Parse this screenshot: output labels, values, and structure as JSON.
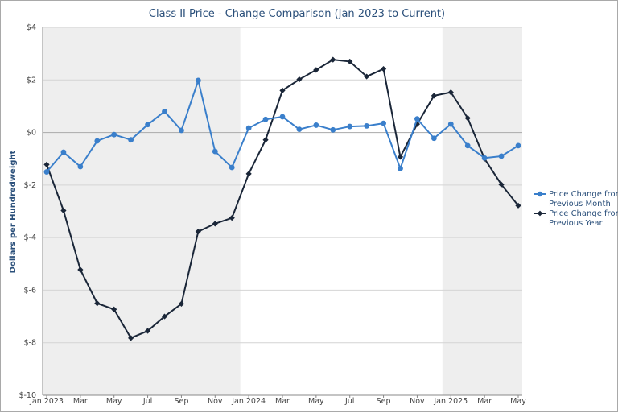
{
  "chart_data": {
    "type": "line",
    "title": "Class II Price - Change Comparison (Jan 2023 to Current)",
    "xlabel": "",
    "ylabel": "Dollars per Hundredweight",
    "ylim": [
      -10,
      4
    ],
    "yticks": [
      4,
      2,
      0,
      -2,
      -4,
      -6,
      -8,
      -10
    ],
    "ytick_labels": [
      "$4",
      "$2",
      "$0",
      "$-2",
      "$-4",
      "$-6",
      "$-8",
      "$-10"
    ],
    "x_labels": [
      {
        "i": 0,
        "label": "Jan 2023"
      },
      {
        "i": 2,
        "label": "Mar"
      },
      {
        "i": 4,
        "label": "May"
      },
      {
        "i": 6,
        "label": "Jul"
      },
      {
        "i": 8,
        "label": "Sep"
      },
      {
        "i": 10,
        "label": "Nov"
      },
      {
        "i": 12,
        "label": "Jan 2024"
      },
      {
        "i": 14,
        "label": "Mar"
      },
      {
        "i": 16,
        "label": "May"
      },
      {
        "i": 18,
        "label": "Jul"
      },
      {
        "i": 20,
        "label": "Sep"
      },
      {
        "i": 22,
        "label": "Nov"
      },
      {
        "i": 24,
        "label": "Jan 2025"
      },
      {
        "i": 26,
        "label": "Mar"
      },
      {
        "i": 28,
        "label": "May"
      }
    ],
    "shaded_year_spans": [
      [
        0,
        11.5
      ],
      [
        23.5,
        28
      ]
    ],
    "grid": true,
    "legend_position": "right",
    "series": [
      {
        "name": "Price Change from Previous Month",
        "color": "#3a7fcb",
        "marker": "circle",
        "values": [
          -1.5,
          -0.75,
          -1.3,
          -0.32,
          -0.08,
          -0.28,
          0.3,
          0.8,
          0.08,
          1.98,
          -0.72,
          -1.33,
          0.17,
          0.5,
          0.6,
          0.12,
          0.28,
          0.1,
          0.23,
          0.25,
          0.35,
          -1.37,
          0.52,
          -0.22,
          0.32,
          -0.5,
          -0.97,
          -0.9,
          -0.5
        ]
      },
      {
        "name": "Price Change from Previous Year",
        "color": "#1a2638",
        "marker": "diamond",
        "values": [
          -1.22,
          -2.97,
          -5.22,
          -6.5,
          -6.73,
          -7.82,
          -7.55,
          -7.0,
          -6.52,
          -3.77,
          -3.47,
          -3.25,
          -1.57,
          -0.28,
          1.6,
          2.02,
          2.38,
          2.77,
          2.7,
          2.13,
          2.42,
          -0.93,
          0.32,
          1.4,
          1.53,
          0.55,
          -1.0,
          -1.98,
          -2.78
        ]
      }
    ]
  }
}
